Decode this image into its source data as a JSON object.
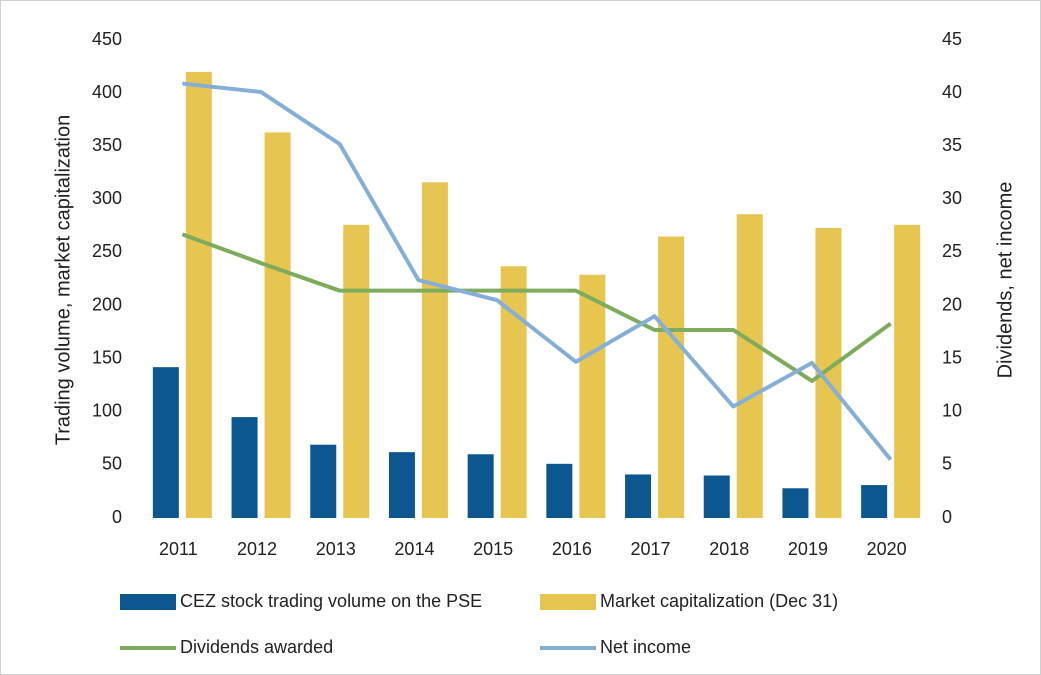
{
  "chart_data": {
    "type": "combo",
    "categories": [
      "2011",
      "2012",
      "2013",
      "2014",
      "2015",
      "2016",
      "2017",
      "2018",
      "2019",
      "2020"
    ],
    "y_label": "Trading volume, market capitalization",
    "y2_label": "Dividends, net income",
    "ylim": [
      0,
      450
    ],
    "yticks": [
      0,
      50,
      100,
      150,
      200,
      250,
      300,
      350,
      400,
      450
    ],
    "y2lim": [
      0,
      45
    ],
    "y2ticks": [
      0,
      5,
      10,
      15,
      20,
      25,
      30,
      35,
      40,
      45
    ],
    "grid": false,
    "series": [
      {
        "name": "CEZ stock trading volume on the PSE",
        "type": "bar",
        "axis": "y",
        "color": "#0d5791",
        "values": [
          142,
          95,
          69,
          62,
          60,
          51,
          41,
          40,
          28,
          31
        ]
      },
      {
        "name": "Market capitalization (Dec 31)",
        "type": "bar",
        "axis": "y",
        "color": "#e6c550",
        "values": [
          420,
          363,
          276,
          316,
          237,
          229,
          265,
          286,
          273,
          276
        ]
      },
      {
        "name": "Dividends awarded",
        "type": "line",
        "axis": "y2",
        "color": "#7fab5d",
        "values": [
          26.7,
          24,
          21.4,
          21.4,
          21.4,
          21.4,
          17.7,
          17.7,
          12.9,
          18.3
        ]
      },
      {
        "name": "Net income",
        "type": "line",
        "axis": "y2",
        "color": "#86afd8",
        "values": [
          40.9,
          40.1,
          35.2,
          22.4,
          20.5,
          14.7,
          19.0,
          10.5,
          14.6,
          5.5
        ]
      }
    ]
  }
}
